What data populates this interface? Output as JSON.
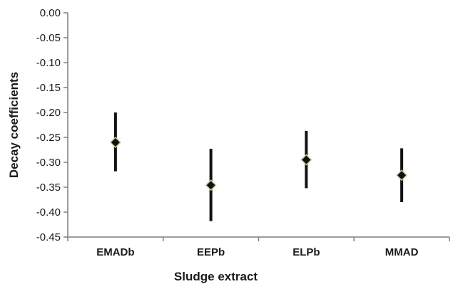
{
  "chart_data": {
    "type": "scatter",
    "title": "",
    "xlabel": "Sludge extract",
    "ylabel": "Decay coefficients",
    "categories": [
      "EMADb",
      "EEPb",
      "ELPb",
      "MMAD"
    ],
    "series": [
      {
        "values": [
          -0.26,
          -0.346,
          -0.295,
          -0.326
        ],
        "error_low": [
          -0.318,
          -0.418,
          -0.352,
          -0.38
        ],
        "error_high": [
          -0.2,
          -0.273,
          -0.237,
          -0.272
        ]
      }
    ],
    "ylim": [
      -0.45,
      0.0
    ],
    "yticks": [
      "0.00",
      "-0.05",
      "-0.10",
      "-0.15",
      "-0.20",
      "-0.25",
      "-0.30",
      "-0.35",
      "-0.40",
      "-0.45"
    ],
    "ytick_values": [
      0.0,
      -0.05,
      -0.1,
      -0.15,
      -0.2,
      -0.25,
      -0.3,
      -0.35,
      -0.4,
      -0.45
    ],
    "grid": false,
    "legend": "none",
    "marker_color": "#111111",
    "marker_edge_color": "#c8c89a",
    "errorbar_color": "#111111"
  }
}
